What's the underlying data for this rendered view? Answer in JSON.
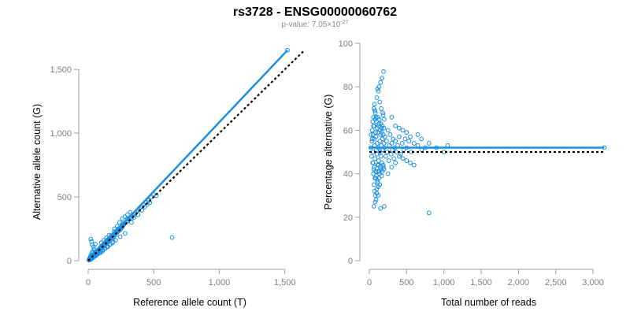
{
  "header": {
    "title": "rs3728 - ENSG00000060762",
    "pvalue_prefix": "p-value: 7.05×10",
    "pvalue_exponent": "-27"
  },
  "colors": {
    "points": "#1a8fe3",
    "fit_line": "#1a8fe3",
    "reference_line": "#000000",
    "axis": "#9e9e9e",
    "tick_text": "#7f7f7f"
  },
  "chart_data": [
    {
      "id": "left",
      "type": "scatter",
      "xlabel": "Reference allele count (T)",
      "ylabel": "Alternative allele count (G)",
      "xlim": [
        0,
        1550
      ],
      "ylim": [
        0,
        1550
      ],
      "xticks": [
        0,
        500,
        1000,
        1500
      ],
      "xtick_labels": [
        "0",
        "500",
        "1,000",
        "1,500"
      ],
      "yticks": [
        0,
        500,
        1000,
        1500
      ],
      "ytick_labels": [
        "0",
        "500",
        "1,000",
        "1,500"
      ],
      "fit_line": [
        [
          0,
          0
        ],
        [
          1520,
          1650
        ]
      ],
      "reference_line": [
        [
          0,
          0
        ],
        [
          1640,
          1640
        ]
      ],
      "points": [
        [
          10,
          12
        ],
        [
          14,
          18
        ],
        [
          18,
          15
        ],
        [
          22,
          25
        ],
        [
          26,
          20
        ],
        [
          30,
          34
        ],
        [
          34,
          28
        ],
        [
          38,
          42
        ],
        [
          42,
          38
        ],
        [
          46,
          50
        ],
        [
          50,
          44
        ],
        [
          55,
          60
        ],
        [
          60,
          55
        ],
        [
          65,
          70
        ],
        [
          70,
          64
        ],
        [
          75,
          82
        ],
        [
          80,
          76
        ],
        [
          85,
          92
        ],
        [
          90,
          88
        ],
        [
          95,
          100
        ],
        [
          100,
          96
        ],
        [
          105,
          112
        ],
        [
          110,
          104
        ],
        [
          115,
          124
        ],
        [
          120,
          118
        ],
        [
          125,
          132
        ],
        [
          130,
          126
        ],
        [
          135,
          140
        ],
        [
          140,
          150
        ],
        [
          145,
          138
        ],
        [
          150,
          160
        ],
        [
          155,
          150
        ],
        [
          160,
          172
        ],
        [
          165,
          160
        ],
        [
          170,
          180
        ],
        [
          175,
          168
        ],
        [
          180,
          192
        ],
        [
          185,
          176
        ],
        [
          190,
          200
        ],
        [
          195,
          190
        ],
        [
          200,
          212
        ],
        [
          205,
          200
        ],
        [
          210,
          222
        ],
        [
          215,
          214
        ],
        [
          220,
          236
        ],
        [
          225,
          226
        ],
        [
          230,
          244
        ],
        [
          235,
          236
        ],
        [
          240,
          252
        ],
        [
          245,
          244
        ],
        [
          250,
          260
        ],
        [
          255,
          270
        ],
        [
          260,
          262
        ],
        [
          265,
          278
        ],
        [
          270,
          282
        ],
        [
          275,
          288
        ],
        [
          280,
          296
        ],
        [
          290,
          304
        ],
        [
          300,
          310
        ],
        [
          310,
          330
        ],
        [
          320,
          336
        ],
        [
          330,
          330
        ],
        [
          340,
          352
        ],
        [
          350,
          366
        ],
        [
          360,
          372
        ],
        [
          370,
          385
        ],
        [
          380,
          396
        ],
        [
          390,
          408
        ],
        [
          400,
          420
        ],
        [
          420,
          440
        ],
        [
          440,
          460
        ],
        [
          460,
          470
        ],
        [
          480,
          498
        ],
        [
          15,
          30
        ],
        [
          20,
          42
        ],
        [
          28,
          60
        ],
        [
          35,
          72
        ],
        [
          45,
          90
        ],
        [
          40,
          110
        ],
        [
          25,
          150
        ],
        [
          20,
          170
        ],
        [
          30,
          125
        ],
        [
          55,
          130
        ],
        [
          60,
          40
        ],
        [
          70,
          50
        ],
        [
          90,
          60
        ],
        [
          110,
          75
        ],
        [
          130,
          95
        ],
        [
          150,
          110
        ],
        [
          170,
          130
        ],
        [
          190,
          150
        ],
        [
          100,
          140
        ],
        [
          120,
          160
        ],
        [
          140,
          180
        ],
        [
          160,
          200
        ],
        [
          200,
          250
        ],
        [
          220,
          270
        ],
        [
          240,
          300
        ],
        [
          260,
          330
        ],
        [
          280,
          345
        ],
        [
          300,
          360
        ],
        [
          320,
          380
        ],
        [
          5,
          5
        ],
        [
          8,
          12
        ],
        [
          12,
          6
        ],
        [
          16,
          22
        ],
        [
          20,
          10
        ],
        [
          24,
          30
        ],
        [
          28,
          16
        ],
        [
          32,
          40
        ],
        [
          36,
          24
        ],
        [
          40,
          48
        ],
        [
          44,
          30
        ],
        [
          48,
          56
        ],
        [
          52,
          36
        ],
        [
          56,
          66
        ],
        [
          62,
          46
        ],
        [
          66,
          76
        ],
        [
          72,
          52
        ],
        [
          78,
          84
        ],
        [
          84,
          60
        ],
        [
          92,
          104
        ],
        [
          98,
          72
        ],
        [
          104,
          116
        ],
        [
          112,
          84
        ],
        [
          118,
          130
        ],
        [
          126,
          96
        ],
        [
          134,
          150
        ],
        [
          142,
          110
        ],
        [
          152,
          168
        ],
        [
          162,
          124
        ],
        [
          176,
          196
        ],
        [
          186,
          140
        ],
        [
          198,
          226
        ],
        [
          210,
          160
        ],
        [
          228,
          250
        ],
        [
          244,
          188
        ],
        [
          262,
          290
        ],
        [
          282,
          214
        ],
        [
          300,
          330
        ],
        [
          330,
          300
        ],
        [
          350,
          340
        ],
        [
          380,
          360
        ],
        [
          410,
          395
        ],
        [
          430,
          420
        ],
        [
          450,
          440
        ],
        [
          470,
          455
        ],
        [
          500,
          520
        ],
        [
          520,
          510
        ],
        [
          640,
          182
        ],
        [
          1520,
          1650
        ]
      ]
    },
    {
      "id": "right",
      "type": "scatter",
      "xlabel": "Total number of reads",
      "ylabel": "Percentage alternative (G)",
      "xlim": [
        0,
        3200
      ],
      "ylim": [
        0,
        100
      ],
      "xticks": [
        0,
        500,
        1000,
        1500,
        2000,
        2500,
        3000
      ],
      "xtick_labels": [
        "0",
        "500",
        "1,000",
        "1,500",
        "2,000",
        "2,500",
        "3,000"
      ],
      "yticks": [
        0,
        20,
        40,
        60,
        80,
        100
      ],
      "ytick_labels": [
        "0",
        "20",
        "40",
        "60",
        "80",
        "100"
      ],
      "fit_line": [
        [
          0,
          52
        ],
        [
          3150,
          52
        ]
      ],
      "reference_line": [
        [
          0,
          50
        ],
        [
          3150,
          50
        ]
      ],
      "points": [
        [
          20,
          52
        ],
        [
          25,
          58
        ],
        [
          30,
          48
        ],
        [
          35,
          55
        ],
        [
          40,
          60
        ],
        [
          45,
          45
        ],
        [
          50,
          50
        ],
        [
          55,
          62
        ],
        [
          60,
          42
        ],
        [
          65,
          56
        ],
        [
          70,
          53
        ],
        [
          75,
          47
        ],
        [
          80,
          65
        ],
        [
          85,
          38
        ],
        [
          90,
          57
        ],
        [
          95,
          51
        ],
        [
          100,
          49
        ],
        [
          105,
          54
        ],
        [
          110,
          44
        ],
        [
          115,
          59
        ],
        [
          120,
          52
        ],
        [
          125,
          46
        ],
        [
          130,
          63
        ],
        [
          135,
          41
        ],
        [
          140,
          55
        ],
        [
          145,
          50
        ],
        [
          150,
          58
        ],
        [
          155,
          48
        ],
        [
          160,
          53
        ],
        [
          165,
          61
        ],
        [
          170,
          45
        ],
        [
          175,
          56
        ],
        [
          180,
          51
        ],
        [
          185,
          67
        ],
        [
          190,
          43
        ],
        [
          195,
          54
        ],
        [
          200,
          52
        ],
        [
          210,
          57
        ],
        [
          220,
          48
        ],
        [
          230,
          55
        ],
        [
          240,
          50
        ],
        [
          250,
          60
        ],
        [
          260,
          46
        ],
        [
          270,
          53
        ],
        [
          280,
          58
        ],
        [
          290,
          49
        ],
        [
          300,
          54
        ],
        [
          310,
          51
        ],
        [
          320,
          56
        ],
        [
          330,
          47
        ],
        [
          340,
          52
        ],
        [
          350,
          55
        ],
        [
          360,
          50
        ],
        [
          380,
          53
        ],
        [
          400,
          57
        ],
        [
          420,
          49
        ],
        [
          440,
          54
        ],
        [
          460,
          51
        ],
        [
          480,
          56
        ],
        [
          500,
          52
        ],
        [
          530,
          55
        ],
        [
          560,
          50
        ],
        [
          600,
          54
        ],
        [
          650,
          53
        ],
        [
          700,
          51
        ],
        [
          750,
          52
        ],
        [
          800,
          54
        ],
        [
          900,
          52
        ],
        [
          1000,
          50
        ],
        [
          1050,
          53
        ],
        [
          3150,
          52
        ],
        [
          60,
          70
        ],
        [
          70,
          72
        ],
        [
          80,
          68
        ],
        [
          90,
          66
        ],
        [
          100,
          75
        ],
        [
          110,
          79
        ],
        [
          120,
          78
        ],
        [
          130,
          80
        ],
        [
          140,
          73
        ],
        [
          150,
          82
        ],
        [
          160,
          70
        ],
        [
          170,
          84
        ],
        [
          180,
          68
        ],
        [
          190,
          87
        ],
        [
          200,
          65
        ],
        [
          60,
          35
        ],
        [
          70,
          32
        ],
        [
          80,
          30
        ],
        [
          90,
          28
        ],
        [
          100,
          33
        ],
        [
          110,
          36
        ],
        [
          120,
          30
        ],
        [
          130,
          38
        ],
        [
          140,
          35
        ],
        [
          60,
          25
        ],
        [
          80,
          27
        ],
        [
          100,
          31
        ],
        [
          120,
          34
        ],
        [
          150,
          24
        ],
        [
          200,
          25
        ],
        [
          250,
          40
        ],
        [
          300,
          43
        ],
        [
          350,
          45
        ],
        [
          400,
          48
        ],
        [
          450,
          47
        ],
        [
          500,
          46
        ],
        [
          550,
          45
        ],
        [
          600,
          44
        ],
        [
          300,
          66
        ],
        [
          350,
          62
        ],
        [
          400,
          61
        ],
        [
          450,
          60
        ],
        [
          500,
          59
        ],
        [
          550,
          57
        ],
        [
          650,
          58
        ],
        [
          700,
          56
        ],
        [
          800,
          22
        ],
        [
          50,
          45
        ],
        [
          55,
          40
        ],
        [
          65,
          43
        ],
        [
          75,
          38
        ],
        [
          85,
          41
        ],
        [
          95,
          39
        ],
        [
          105,
          37
        ],
        [
          115,
          41
        ],
        [
          125,
          44
        ],
        [
          135,
          40
        ],
        [
          145,
          43
        ],
        [
          155,
          42
        ],
        [
          165,
          39
        ],
        [
          175,
          41
        ],
        [
          185,
          44
        ],
        [
          195,
          42
        ],
        [
          40,
          56
        ],
        [
          45,
          64
        ],
        [
          50,
          58
        ],
        [
          55,
          66
        ],
        [
          65,
          62
        ],
        [
          75,
          69
        ],
        [
          85,
          59
        ],
        [
          95,
          64
        ],
        [
          105,
          61
        ],
        [
          115,
          66
        ],
        [
          125,
          62
        ],
        [
          135,
          65
        ],
        [
          145,
          60
        ],
        [
          155,
          63
        ],
        [
          165,
          59
        ],
        [
          175,
          62
        ],
        [
          185,
          58
        ],
        [
          195,
          61
        ]
      ]
    }
  ]
}
